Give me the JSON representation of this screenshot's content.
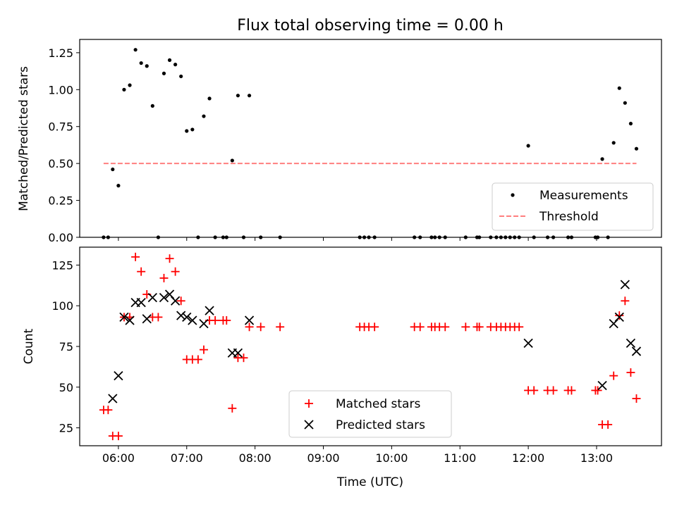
{
  "chart_data": [
    {
      "type": "scatter",
      "title": "Flux total observing time = 0.00 h",
      "xlabel": "",
      "ylabel": "Matched/Predicted stars",
      "xlim": [
        "05:26",
        "13:57"
      ],
      "ylim": [
        0,
        1.34
      ],
      "yticks": [
        "0.00",
        "0.25",
        "0.50",
        "0.75",
        "1.00",
        "1.25"
      ],
      "xticks": [
        "06:00",
        "07:00",
        "08:00",
        "09:00",
        "10:00",
        "11:00",
        "12:00",
        "13:00"
      ],
      "legend_position": "lower-right",
      "series": [
        {
          "name": "Measurements",
          "marker": "dot",
          "color": "#000000",
          "points": [
            [
              "05:47",
              0
            ],
            [
              "05:51",
              0
            ],
            [
              "05:55",
              0.46
            ],
            [
              "06:00",
              0.35
            ],
            [
              "06:05",
              1.0
            ],
            [
              "06:10",
              1.03
            ],
            [
              "06:15",
              1.27
            ],
            [
              "06:20",
              1.18
            ],
            [
              "06:25",
              1.16
            ],
            [
              "06:30",
              0.89
            ],
            [
              "06:35",
              0
            ],
            [
              "06:40",
              1.11
            ],
            [
              "06:45",
              1.2
            ],
            [
              "06:50",
              1.17
            ],
            [
              "06:55",
              1.09
            ],
            [
              "07:00",
              0.72
            ],
            [
              "07:05",
              0.73
            ],
            [
              "07:10",
              0
            ],
            [
              "07:15",
              0.82
            ],
            [
              "07:20",
              0.94
            ],
            [
              "07:25",
              0
            ],
            [
              "07:32",
              0
            ],
            [
              "07:35",
              0
            ],
            [
              "07:40",
              0.52
            ],
            [
              "07:45",
              0.96
            ],
            [
              "07:50",
              0
            ],
            [
              "07:55",
              0.96
            ],
            [
              "08:05",
              0
            ],
            [
              "08:22",
              0
            ],
            [
              "09:32",
              0
            ],
            [
              "09:36",
              0
            ],
            [
              "09:40",
              0
            ],
            [
              "09:45",
              0
            ],
            [
              "10:20",
              0
            ],
            [
              "10:25",
              0
            ],
            [
              "10:35",
              0
            ],
            [
              "10:38",
              0
            ],
            [
              "10:42",
              0
            ],
            [
              "10:47",
              0
            ],
            [
              "11:05",
              0
            ],
            [
              "11:15",
              0
            ],
            [
              "11:17",
              0
            ],
            [
              "11:27",
              0
            ],
            [
              "11:32",
              0
            ],
            [
              "11:36",
              0
            ],
            [
              "11:40",
              0
            ],
            [
              "11:44",
              0
            ],
            [
              "11:48",
              0
            ],
            [
              "11:52",
              0
            ],
            [
              "12:00",
              0.62
            ],
            [
              "12:05",
              0
            ],
            [
              "12:17",
              0
            ],
            [
              "12:22",
              0
            ],
            [
              "12:35",
              0
            ],
            [
              "12:38",
              0
            ],
            [
              "12:59",
              0
            ],
            [
              "13:01",
              0
            ],
            [
              "13:05",
              0.53
            ],
            [
              "13:10",
              0
            ],
            [
              "13:15",
              0.64
            ],
            [
              "13:20",
              1.01
            ],
            [
              "13:25",
              0.91
            ],
            [
              "13:30",
              0.77
            ],
            [
              "13:35",
              0.6
            ]
          ]
        },
        {
          "name": "Threshold",
          "marker": "dashed-line",
          "color": "#ff7f7f",
          "points": [
            [
              "05:47",
              0.5
            ],
            [
              "13:35",
              0.5
            ]
          ]
        }
      ]
    },
    {
      "type": "scatter",
      "title": "",
      "xlabel": "Time (UTC)",
      "ylabel": "Count",
      "xlim": [
        "05:26",
        "13:57"
      ],
      "ylim": [
        14,
        136
      ],
      "yticks": [
        "25",
        "50",
        "75",
        "100",
        "125"
      ],
      "xticks": [
        "06:00",
        "07:00",
        "08:00",
        "09:00",
        "10:00",
        "11:00",
        "12:00",
        "13:00"
      ],
      "legend_position": "lower-center",
      "series": [
        {
          "name": "Matched stars",
          "marker": "plus",
          "color": "#ff0000",
          "points": [
            [
              "05:47",
              36
            ],
            [
              "05:51",
              36
            ],
            [
              "05:55",
              20
            ],
            [
              "06:00",
              20
            ],
            [
              "06:05",
              93
            ],
            [
              "06:10",
              93
            ],
            [
              "06:15",
              130
            ],
            [
              "06:20",
              121
            ],
            [
              "06:25",
              107
            ],
            [
              "06:30",
              93
            ],
            [
              "06:35",
              93
            ],
            [
              "06:40",
              117
            ],
            [
              "06:45",
              129
            ],
            [
              "06:50",
              121
            ],
            [
              "06:55",
              103
            ],
            [
              "07:00",
              67
            ],
            [
              "07:05",
              67
            ],
            [
              "07:10",
              67
            ],
            [
              "07:15",
              73
            ],
            [
              "07:20",
              91
            ],
            [
              "07:25",
              91
            ],
            [
              "07:32",
              91
            ],
            [
              "07:35",
              91
            ],
            [
              "07:40",
              37
            ],
            [
              "07:45",
              68
            ],
            [
              "07:50",
              68
            ],
            [
              "07:55",
              87
            ],
            [
              "08:05",
              87
            ],
            [
              "08:22",
              87
            ],
            [
              "09:32",
              87
            ],
            [
              "09:36",
              87
            ],
            [
              "09:40",
              87
            ],
            [
              "09:45",
              87
            ],
            [
              "10:20",
              87
            ],
            [
              "10:25",
              87
            ],
            [
              "10:35",
              87
            ],
            [
              "10:38",
              87
            ],
            [
              "10:42",
              87
            ],
            [
              "10:47",
              87
            ],
            [
              "11:05",
              87
            ],
            [
              "11:15",
              87
            ],
            [
              "11:17",
              87
            ],
            [
              "11:27",
              87
            ],
            [
              "11:32",
              87
            ],
            [
              "11:36",
              87
            ],
            [
              "11:40",
              87
            ],
            [
              "11:44",
              87
            ],
            [
              "11:48",
              87
            ],
            [
              "11:52",
              87
            ],
            [
              "12:00",
              48
            ],
            [
              "12:05",
              48
            ],
            [
              "12:17",
              48
            ],
            [
              "12:22",
              48
            ],
            [
              "12:35",
              48
            ],
            [
              "12:38",
              48
            ],
            [
              "12:59",
              48
            ],
            [
              "13:01",
              48
            ],
            [
              "13:05",
              27
            ],
            [
              "13:10",
              27
            ],
            [
              "13:15",
              57
            ],
            [
              "13:20",
              94
            ],
            [
              "13:25",
              103
            ],
            [
              "13:30",
              59
            ],
            [
              "13:35",
              43
            ]
          ]
        },
        {
          "name": "Predicted stars",
          "marker": "x",
          "color": "#000000",
          "points": [
            [
              "05:55",
              43
            ],
            [
              "06:00",
              57
            ],
            [
              "06:05",
              93
            ],
            [
              "06:10",
              91
            ],
            [
              "06:15",
              102
            ],
            [
              "06:20",
              102
            ],
            [
              "06:25",
              92
            ],
            [
              "06:30",
              105
            ],
            [
              "06:40",
              105
            ],
            [
              "06:45",
              107
            ],
            [
              "06:50",
              103
            ],
            [
              "06:55",
              94
            ],
            [
              "07:00",
              93
            ],
            [
              "07:05",
              91
            ],
            [
              "07:15",
              89
            ],
            [
              "07:20",
              97
            ],
            [
              "07:40",
              71
            ],
            [
              "07:45",
              71
            ],
            [
              "07:55",
              91
            ],
            [
              "12:00",
              77
            ],
            [
              "13:05",
              51
            ],
            [
              "13:15",
              89
            ],
            [
              "13:20",
              93
            ],
            [
              "13:25",
              113
            ],
            [
              "13:30",
              77
            ],
            [
              "13:35",
              72
            ]
          ]
        }
      ]
    }
  ]
}
